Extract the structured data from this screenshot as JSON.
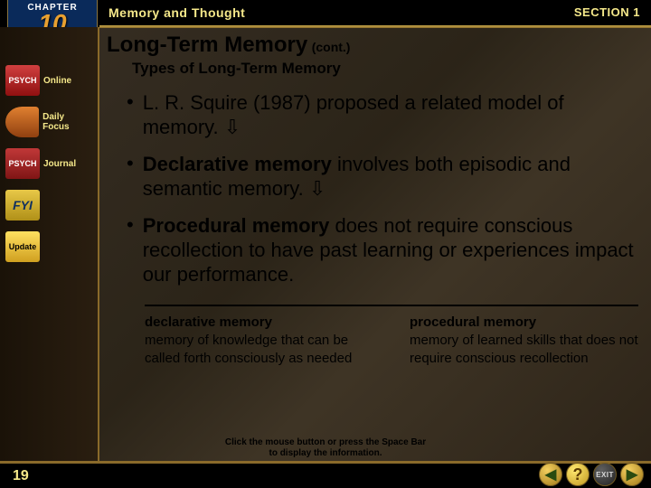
{
  "chapter": {
    "label": "CHAPTER",
    "number": "10"
  },
  "header": {
    "title": "Memory and Thought",
    "section": "SECTION 1"
  },
  "sidebar": {
    "items": [
      {
        "icon_text": "PSYCH",
        "label": "Online"
      },
      {
        "icon_text": "",
        "label": "Daily Focus"
      },
      {
        "icon_text": "PSYCH",
        "label": "Journal"
      },
      {
        "icon_text": "FYI",
        "label": ""
      },
      {
        "icon_text": "Update",
        "label": ""
      }
    ]
  },
  "content": {
    "title": "Long-Term Memory",
    "cont": "(cont.)",
    "subtitle": "Types of Long-Term Memory",
    "bullets": [
      {
        "html": "L. R. Squire (1987) proposed a related model of memory. ⇩"
      },
      {
        "html": "<b>Declarative memory</b> involves both episodic and semantic memory. ⇩"
      },
      {
        "html": "<b>Procedural memory</b> does not require conscious recollection to have past learning or experiences impact our performance."
      }
    ],
    "definitions": [
      {
        "term": "declarative memory",
        "def": "memory of knowledge that can be called forth consciously as needed"
      },
      {
        "term": "procedural memory",
        "def": "memory of learned skills that does not require conscious recollection"
      }
    ]
  },
  "footer": {
    "page": "19",
    "hint1": "Click the mouse button or press the Space Bar",
    "hint2": "to display the information.",
    "help": "?",
    "exit": "EXIT",
    "prev": "◀",
    "next": "▶"
  },
  "colors": {
    "gold_text": "#f5e88a",
    "chapter_num": "#e8a030",
    "border_gold": "#8a6a2a"
  }
}
